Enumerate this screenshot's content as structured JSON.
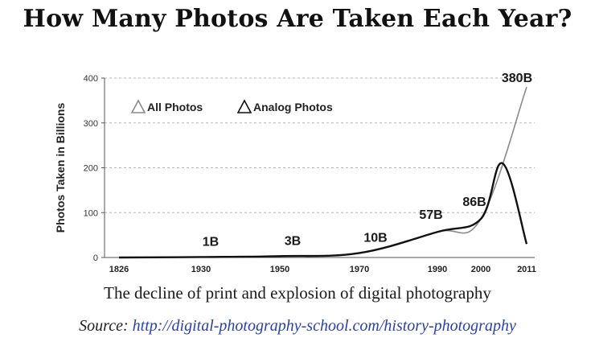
{
  "header": {
    "title": "How Many Photos Are Taken Each Year?"
  },
  "caption": "The decline of print and explosion of digital photography",
  "source": {
    "label": "Source:",
    "url_text": "http://digital-photography-school.com/history-photography"
  },
  "chart_data": {
    "type": "line",
    "title": "",
    "ylabel": "Photos Taken in Billions",
    "xlabel": "",
    "ylim": [
      0,
      400
    ],
    "yticks": [
      "0",
      "100",
      "200",
      "300",
      "400"
    ],
    "xticks": [
      "1826",
      "1930",
      "1950",
      "1970",
      "1990",
      "2000",
      "2011"
    ],
    "grid": "horizontal dashed",
    "legend": {
      "placement": "top-left",
      "entries": [
        "All Photos",
        "Analog Photos"
      ]
    },
    "colors": {
      "all_photos": "#8a8a8a",
      "analog_photos": "#111111"
    },
    "series": [
      {
        "name": "All Photos",
        "x": [
          "1826",
          "1930",
          "1950",
          "1970",
          "1990",
          "2000",
          "2011"
        ],
        "values": [
          0,
          1,
          3,
          10,
          57,
          86,
          380
        ]
      },
      {
        "name": "Analog Photos",
        "x": [
          "1826",
          "1930",
          "1950",
          "1970",
          "1990",
          "2000",
          "2005",
          "2011"
        ],
        "values": [
          0,
          1,
          3,
          10,
          57,
          86,
          210,
          30
        ]
      }
    ],
    "data_labels": [
      "1B",
      "3B",
      "10B",
      "57B",
      "86B",
      "380B"
    ]
  }
}
